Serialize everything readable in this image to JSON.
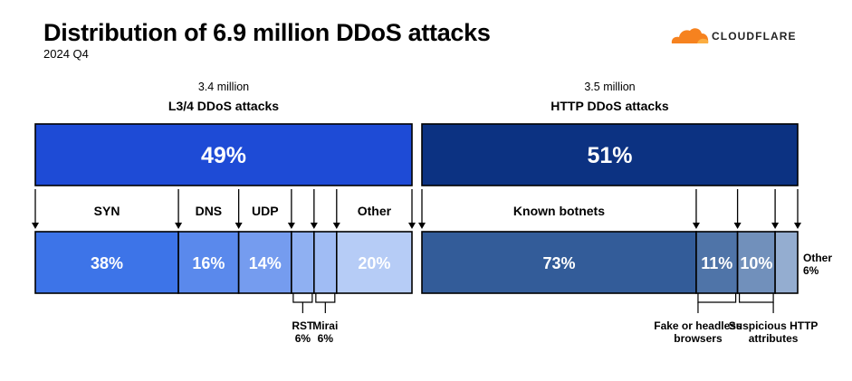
{
  "title": "Distribution of 6.9 million DDoS attacks",
  "subtitle": "2024 Q4",
  "logo": {
    "text": "CLOUDFLARE",
    "mark_color": "#f6821f"
  },
  "chart_data": {
    "type": "bar",
    "title": "Distribution of 6.9 million DDoS attacks",
    "subtitle": "2024 Q4",
    "total_attacks": "6.9 million",
    "groups": [
      {
        "name": "L3/4 DDoS attacks",
        "count_label": "3.4 million",
        "share": 49,
        "share_label": "49%",
        "color": "#1e4bd6",
        "segments": [
          {
            "name": "SYN",
            "value": 38,
            "value_label": "38%",
            "color": "#3d74e8",
            "label_position": "top"
          },
          {
            "name": "DNS",
            "value": 16,
            "value_label": "16%",
            "color": "#5a89ec",
            "label_position": "top"
          },
          {
            "name": "UDP",
            "value": 14,
            "value_label": "14%",
            "color": "#759cef",
            "label_position": "top"
          },
          {
            "name": "RST",
            "value": 6,
            "value_label": "6%",
            "color": "#8fb0f2",
            "label_position": "bottom"
          },
          {
            "name": "Mirai",
            "value": 6,
            "value_label": "6%",
            "color": "#a0bcf4",
            "label_position": "bottom"
          },
          {
            "name": "Other",
            "value": 20,
            "value_label": "20%",
            "color": "#b6ccf6",
            "label_position": "top"
          }
        ]
      },
      {
        "name": "HTTP DDoS attacks",
        "count_label": "3.5 million",
        "share": 51,
        "share_label": "51%",
        "color": "#0c3282",
        "segments": [
          {
            "name": "Known botnets",
            "value": 73,
            "value_label": "73%",
            "color": "#335c99",
            "label_position": "top"
          },
          {
            "name": "Fake or headless browsers",
            "value": 11,
            "value_label": "11%",
            "color": "#4f74a8",
            "label_position": "bottom"
          },
          {
            "name": "Suspicious HTTP attributes",
            "value": 10,
            "value_label": "10%",
            "color": "#7190bb",
            "label_position": "bottom"
          },
          {
            "name": "Other",
            "value": 6,
            "value_label": "6%",
            "color": "#94add0",
            "label_position": "right"
          }
        ]
      }
    ]
  }
}
